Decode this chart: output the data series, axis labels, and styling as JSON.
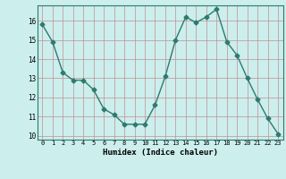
{
  "x": [
    0,
    1,
    2,
    3,
    4,
    5,
    6,
    7,
    8,
    9,
    10,
    11,
    12,
    13,
    14,
    15,
    16,
    17,
    18,
    19,
    20,
    21,
    22,
    23
  ],
  "y": [
    15.8,
    14.9,
    13.3,
    12.9,
    12.9,
    12.4,
    11.4,
    11.1,
    10.6,
    10.6,
    10.6,
    11.6,
    13.1,
    15.0,
    16.2,
    15.9,
    16.2,
    16.6,
    14.9,
    14.2,
    13.0,
    11.9,
    10.9,
    10.1
  ],
  "xlabel": "Humidex (Indice chaleur)",
  "line_color": "#2d7a6e",
  "marker": "D",
  "marker_size": 2.5,
  "bg_color": "#cceeed",
  "grid_color": "#c09090",
  "ylim": [
    9.8,
    16.8
  ],
  "xlim": [
    -0.5,
    23.5
  ],
  "yticks": [
    10,
    11,
    12,
    13,
    14,
    15,
    16
  ],
  "xticks": [
    0,
    1,
    2,
    3,
    4,
    5,
    6,
    7,
    8,
    9,
    10,
    11,
    12,
    13,
    14,
    15,
    16,
    17,
    18,
    19,
    20,
    21,
    22,
    23
  ]
}
